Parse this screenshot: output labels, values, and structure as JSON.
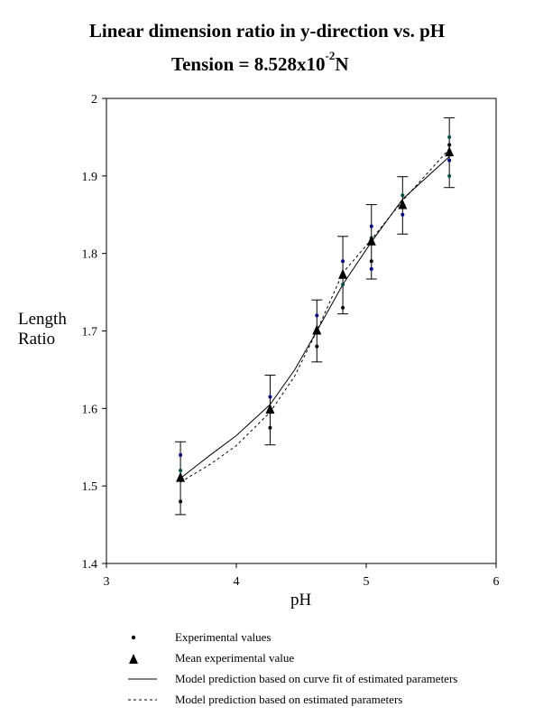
{
  "chart_data": {
    "type": "scatter",
    "title": "Linear dimension ratio in y-direction vs. pH",
    "subtitle_prefix": "Tension = 8.528x10",
    "subtitle_exp": "-2",
    "subtitle_suffix": "N",
    "xlabel": "pH",
    "ylabel_line1": "Length",
    "ylabel_line2": "Ratio",
    "xlim": [
      3,
      6
    ],
    "ylim": [
      1.4,
      2.0
    ],
    "xticks": [
      "3",
      "4",
      "5",
      "6"
    ],
    "yticks": [
      "1.4",
      "1.5",
      "1.6",
      "1.7",
      "1.8",
      "1.9",
      "2"
    ],
    "grid": false,
    "legend_position": "bottom",
    "series": [
      {
        "name": "Experimental values",
        "points": [
          {
            "x": 3.57,
            "y": 1.54
          },
          {
            "x": 3.57,
            "y": 1.52
          },
          {
            "x": 3.57,
            "y": 1.48
          },
          {
            "x": 4.26,
            "y": 1.615
          },
          {
            "x": 4.26,
            "y": 1.595
          },
          {
            "x": 4.26,
            "y": 1.575
          },
          {
            "x": 4.62,
            "y": 1.72
          },
          {
            "x": 4.62,
            "y": 1.7
          },
          {
            "x": 4.62,
            "y": 1.68
          },
          {
            "x": 4.82,
            "y": 1.79
          },
          {
            "x": 4.82,
            "y": 1.76
          },
          {
            "x": 4.82,
            "y": 1.73
          },
          {
            "x": 5.04,
            "y": 1.835
          },
          {
            "x": 5.04,
            "y": 1.82
          },
          {
            "x": 5.04,
            "y": 1.79
          },
          {
            "x": 5.04,
            "y": 1.78
          },
          {
            "x": 5.28,
            "y": 1.875
          },
          {
            "x": 5.28,
            "y": 1.86
          },
          {
            "x": 5.28,
            "y": 1.85
          },
          {
            "x": 5.64,
            "y": 1.95
          },
          {
            "x": 5.64,
            "y": 1.94
          },
          {
            "x": 5.64,
            "y": 1.92
          },
          {
            "x": 5.64,
            "y": 1.9
          }
        ]
      },
      {
        "name": "Mean experimental value",
        "points": [
          {
            "x": 3.57,
            "y": 1.51,
            "err": 0.047
          },
          {
            "x": 4.26,
            "y": 1.598,
            "err": 0.045
          },
          {
            "x": 4.62,
            "y": 1.7,
            "err": 0.04
          },
          {
            "x": 4.82,
            "y": 1.772,
            "err": 0.05
          },
          {
            "x": 5.04,
            "y": 1.815,
            "err": 0.048
          },
          {
            "x": 5.28,
            "y": 1.862,
            "err": 0.037
          },
          {
            "x": 5.64,
            "y": 1.93,
            "err": 0.045
          }
        ]
      },
      {
        "name": "Model prediction based on curve fit of estimated parameters",
        "line": "solid",
        "points": [
          {
            "x": 3.57,
            "y": 1.51
          },
          {
            "x": 3.8,
            "y": 1.54
          },
          {
            "x": 4.0,
            "y": 1.565
          },
          {
            "x": 4.26,
            "y": 1.605
          },
          {
            "x": 4.45,
            "y": 1.65
          },
          {
            "x": 4.62,
            "y": 1.7
          },
          {
            "x": 4.82,
            "y": 1.76
          },
          {
            "x": 5.04,
            "y": 1.815
          },
          {
            "x": 5.28,
            "y": 1.87
          },
          {
            "x": 5.64,
            "y": 1.925
          }
        ]
      },
      {
        "name": "Model prediction based on estimated parameters",
        "line": "dashed",
        "points": [
          {
            "x": 3.57,
            "y": 1.505
          },
          {
            "x": 3.8,
            "y": 1.528
          },
          {
            "x": 4.0,
            "y": 1.552
          },
          {
            "x": 4.26,
            "y": 1.595
          },
          {
            "x": 4.45,
            "y": 1.642
          },
          {
            "x": 4.62,
            "y": 1.7
          },
          {
            "x": 4.82,
            "y": 1.775
          },
          {
            "x": 5.04,
            "y": 1.818
          },
          {
            "x": 5.28,
            "y": 1.868
          },
          {
            "x": 5.64,
            "y": 1.935
          }
        ]
      }
    ]
  }
}
